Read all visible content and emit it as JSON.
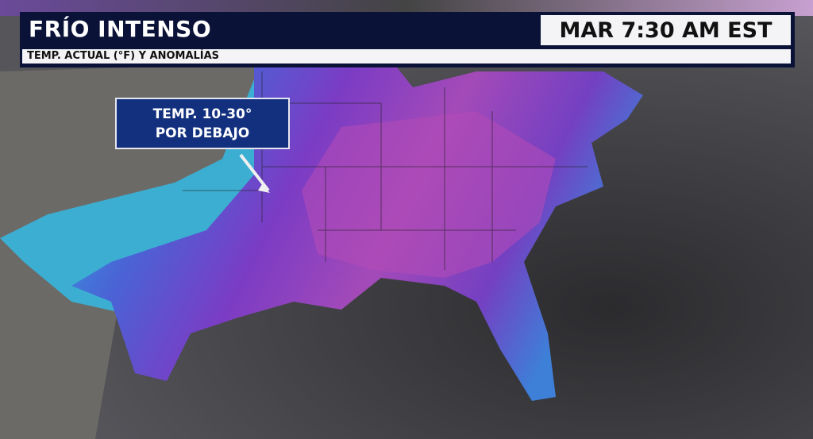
{
  "header": {
    "title": "FRÍO INTENSO",
    "time": "MAR 7:30 AM EST",
    "subtitle": "TEMP. ACTUAL (°F) Y ANOMALÍAS"
  },
  "callout": {
    "line1": "TEMP. 10-30°",
    "line2": "POR DEBAJO"
  },
  "colors": {
    "banner": "#0b1238",
    "callout": "#12307e",
    "cold_purple": "#8a3fc0",
    "cold_magenta": "#b04ab8",
    "cool_cyan": "#2fb6e0",
    "ocean": "#3a3a3e"
  }
}
